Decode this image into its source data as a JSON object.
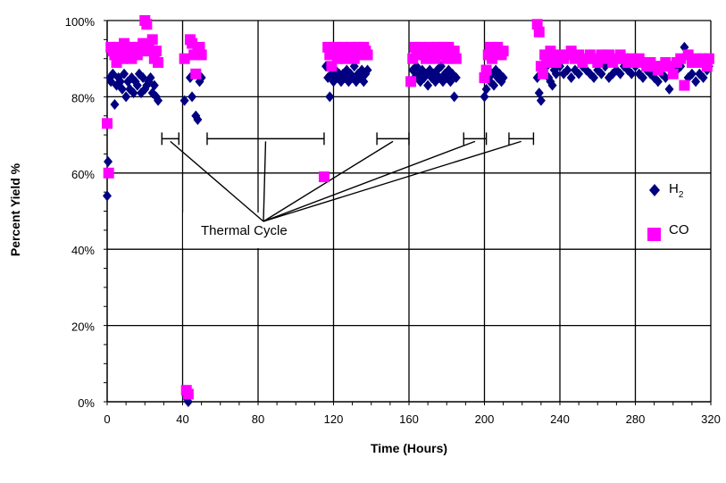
{
  "chart_data": {
    "type": "scatter",
    "xlabel": "Time (Hours)",
    "ylabel": "Percent Yield %",
    "xlim": [
      0,
      320
    ],
    "ylim": [
      0,
      100
    ],
    "x_ticks": [
      "0",
      "40",
      "80",
      "120",
      "160",
      "200",
      "240",
      "280",
      "320"
    ],
    "y_ticks": [
      "0%",
      "20%",
      "40%",
      "60%",
      "80%",
      "100%"
    ],
    "grid": true,
    "legend": {
      "placement": "right",
      "h2": {
        "base": "H",
        "sub": "2"
      },
      "co": "CO"
    },
    "annotation": {
      "text": "Thermal Cycle",
      "intervals": [
        [
          29,
          38
        ],
        [
          53,
          115
        ],
        [
          143,
          160
        ],
        [
          189,
          201
        ],
        [
          213,
          226
        ]
      ]
    },
    "series": [
      {
        "name": "H2",
        "color": "#000080",
        "marker": "diamond",
        "points": [
          [
            0,
            54
          ],
          [
            0.5,
            63
          ],
          [
            1,
            60
          ],
          [
            1.5,
            85
          ],
          [
            2,
            84
          ],
          [
            3,
            86
          ],
          [
            4,
            78
          ],
          [
            5,
            83
          ],
          [
            6,
            85
          ],
          [
            7,
            84
          ],
          [
            8,
            82
          ],
          [
            9,
            86
          ],
          [
            10,
            80
          ],
          [
            11,
            84
          ],
          [
            12,
            82
          ],
          [
            13,
            85
          ],
          [
            14,
            81
          ],
          [
            15,
            84
          ],
          [
            16,
            83
          ],
          [
            17,
            86
          ],
          [
            18,
            81
          ],
          [
            19,
            85
          ],
          [
            20,
            82
          ],
          [
            21,
            83
          ],
          [
            22,
            84
          ],
          [
            23,
            85
          ],
          [
            24,
            81
          ],
          [
            25,
            83
          ],
          [
            26,
            80
          ],
          [
            27,
            79
          ],
          [
            41,
            79
          ],
          [
            42,
            1
          ],
          [
            43,
            0
          ],
          [
            44,
            85
          ],
          [
            45,
            80
          ],
          [
            46,
            86
          ],
          [
            47,
            75
          ],
          [
            48,
            74
          ],
          [
            49,
            84
          ],
          [
            50,
            85
          ],
          [
            116,
            88
          ],
          [
            117,
            85
          ],
          [
            118,
            80
          ],
          [
            119,
            86
          ],
          [
            120,
            84
          ],
          [
            121,
            87
          ],
          [
            122,
            85
          ],
          [
            123,
            86
          ],
          [
            124,
            84
          ],
          [
            125,
            86
          ],
          [
            126,
            85
          ],
          [
            127,
            87
          ],
          [
            128,
            84
          ],
          [
            129,
            86
          ],
          [
            130,
            85
          ],
          [
            131,
            88
          ],
          [
            132,
            84
          ],
          [
            133,
            86
          ],
          [
            134,
            85
          ],
          [
            135,
            87
          ],
          [
            136,
            84
          ],
          [
            137,
            86
          ],
          [
            138,
            87
          ],
          [
            162,
            87
          ],
          [
            163,
            85
          ],
          [
            164,
            88
          ],
          [
            165,
            86
          ],
          [
            166,
            84
          ],
          [
            167,
            87
          ],
          [
            168,
            85
          ],
          [
            169,
            86
          ],
          [
            170,
            83
          ],
          [
            171,
            87
          ],
          [
            172,
            85
          ],
          [
            173,
            86
          ],
          [
            174,
            84
          ],
          [
            175,
            87
          ],
          [
            176,
            85
          ],
          [
            177,
            88
          ],
          [
            178,
            84
          ],
          [
            179,
            86
          ],
          [
            180,
            85
          ],
          [
            181,
            87
          ],
          [
            182,
            84
          ],
          [
            183,
            86
          ],
          [
            184,
            80
          ],
          [
            185,
            85
          ],
          [
            200,
            80
          ],
          [
            201,
            82
          ],
          [
            202,
            85
          ],
          [
            203,
            84
          ],
          [
            204,
            86
          ],
          [
            205,
            83
          ],
          [
            206,
            87
          ],
          [
            207,
            85
          ],
          [
            208,
            86
          ],
          [
            209,
            84
          ],
          [
            210,
            85
          ],
          [
            228,
            85
          ],
          [
            229,
            81
          ],
          [
            230,
            79
          ],
          [
            231,
            87
          ],
          [
            232,
            86
          ],
          [
            233,
            88
          ],
          [
            234,
            85
          ],
          [
            235,
            84
          ],
          [
            236,
            83
          ],
          [
            237,
            87
          ],
          [
            238,
            86
          ],
          [
            240,
            88
          ],
          [
            242,
            86
          ],
          [
            244,
            87
          ],
          [
            246,
            85
          ],
          [
            248,
            87
          ],
          [
            250,
            86
          ],
          [
            252,
            88
          ],
          [
            254,
            87
          ],
          [
            256,
            86
          ],
          [
            258,
            85
          ],
          [
            260,
            87
          ],
          [
            262,
            86
          ],
          [
            264,
            88
          ],
          [
            266,
            85
          ],
          [
            268,
            86
          ],
          [
            270,
            87
          ],
          [
            272,
            86
          ],
          [
            274,
            88
          ],
          [
            276,
            87
          ],
          [
            278,
            86
          ],
          [
            280,
            88
          ],
          [
            282,
            86
          ],
          [
            284,
            85
          ],
          [
            286,
            87
          ],
          [
            288,
            86
          ],
          [
            290,
            85
          ],
          [
            292,
            84
          ],
          [
            294,
            86
          ],
          [
            296,
            85
          ],
          [
            298,
            82
          ],
          [
            300,
            86
          ],
          [
            302,
            87
          ],
          [
            304,
            88
          ],
          [
            306,
            93
          ],
          [
            308,
            85
          ],
          [
            310,
            86
          ],
          [
            312,
            84
          ],
          [
            314,
            86
          ],
          [
            316,
            85
          ],
          [
            318,
            87
          ],
          [
            319,
            88
          ]
        ]
      },
      {
        "name": "CO",
        "color": "#FF00FF",
        "marker": "square",
        "points": [
          [
            0,
            73
          ],
          [
            0.8,
            60
          ],
          [
            2,
            93
          ],
          [
            3,
            92
          ],
          [
            4,
            91
          ],
          [
            5,
            89
          ],
          [
            6,
            93
          ],
          [
            7,
            92
          ],
          [
            8,
            90
          ],
          [
            9,
            94
          ],
          [
            10,
            93
          ],
          [
            11,
            91
          ],
          [
            12,
            92
          ],
          [
            13,
            90
          ],
          [
            14,
            93
          ],
          [
            15,
            92
          ],
          [
            16,
            91
          ],
          [
            17,
            93
          ],
          [
            18,
            92
          ],
          [
            19,
            94
          ],
          [
            20,
            100
          ],
          [
            21,
            99
          ],
          [
            22,
            93
          ],
          [
            23,
            92
          ],
          [
            24,
            95
          ],
          [
            25,
            90
          ],
          [
            26,
            92
          ],
          [
            27,
            89
          ],
          [
            41,
            90
          ],
          [
            42,
            3
          ],
          [
            43,
            2
          ],
          [
            44,
            95
          ],
          [
            45,
            94
          ],
          [
            46,
            91
          ],
          [
            47,
            86
          ],
          [
            48,
            92
          ],
          [
            49,
            93
          ],
          [
            50,
            91
          ],
          [
            115,
            59
          ],
          [
            117,
            93
          ],
          [
            118,
            91
          ],
          [
            119,
            88
          ],
          [
            120,
            92
          ],
          [
            121,
            93
          ],
          [
            122,
            90
          ],
          [
            123,
            92
          ],
          [
            124,
            91
          ],
          [
            125,
            93
          ],
          [
            126,
            90
          ],
          [
            127,
            92
          ],
          [
            128,
            91
          ],
          [
            129,
            93
          ],
          [
            130,
            92
          ],
          [
            131,
            90
          ],
          [
            132,
            91
          ],
          [
            133,
            93
          ],
          [
            134,
            92
          ],
          [
            135,
            91
          ],
          [
            136,
            93
          ],
          [
            137,
            92
          ],
          [
            138,
            91
          ],
          [
            161,
            84
          ],
          [
            162,
            90
          ],
          [
            163,
            93
          ],
          [
            164,
            92
          ],
          [
            165,
            91
          ],
          [
            166,
            93
          ],
          [
            167,
            92
          ],
          [
            168,
            91
          ],
          [
            169,
            90
          ],
          [
            170,
            92
          ],
          [
            171,
            93
          ],
          [
            172,
            91
          ],
          [
            173,
            92
          ],
          [
            174,
            90
          ],
          [
            175,
            93
          ],
          [
            176,
            92
          ],
          [
            177,
            91
          ],
          [
            178,
            93
          ],
          [
            179,
            92
          ],
          [
            180,
            90
          ],
          [
            181,
            93
          ],
          [
            182,
            92
          ],
          [
            183,
            91
          ],
          [
            184,
            92
          ],
          [
            185,
            90
          ],
          [
            200,
            85
          ],
          [
            201,
            87
          ],
          [
            202,
            91
          ],
          [
            203,
            93
          ],
          [
            204,
            90
          ],
          [
            205,
            92
          ],
          [
            206,
            91
          ],
          [
            207,
            93
          ],
          [
            208,
            92
          ],
          [
            209,
            91
          ],
          [
            210,
            92
          ],
          [
            228,
            99
          ],
          [
            229,
            97
          ],
          [
            230,
            88
          ],
          [
            231,
            86
          ],
          [
            232,
            91
          ],
          [
            233,
            90
          ],
          [
            234,
            89
          ],
          [
            235,
            92
          ],
          [
            236,
            91
          ],
          [
            237,
            90
          ],
          [
            238,
            89
          ],
          [
            240,
            91
          ],
          [
            242,
            90
          ],
          [
            244,
            91
          ],
          [
            246,
            92
          ],
          [
            248,
            90
          ],
          [
            250,
            91
          ],
          [
            252,
            89
          ],
          [
            254,
            90
          ],
          [
            256,
            91
          ],
          [
            258,
            90
          ],
          [
            260,
            89
          ],
          [
            262,
            91
          ],
          [
            264,
            90
          ],
          [
            266,
            91
          ],
          [
            268,
            89
          ],
          [
            270,
            90
          ],
          [
            272,
            91
          ],
          [
            274,
            90
          ],
          [
            276,
            89
          ],
          [
            278,
            90
          ],
          [
            280,
            89
          ],
          [
            282,
            90
          ],
          [
            284,
            89
          ],
          [
            286,
            88
          ],
          [
            288,
            89
          ],
          [
            290,
            88
          ],
          [
            292,
            87
          ],
          [
            294,
            88
          ],
          [
            296,
            89
          ],
          [
            298,
            88
          ],
          [
            300,
            86
          ],
          [
            302,
            89
          ],
          [
            304,
            90
          ],
          [
            306,
            83
          ],
          [
            308,
            91
          ],
          [
            310,
            89
          ],
          [
            312,
            90
          ],
          [
            314,
            89
          ],
          [
            316,
            90
          ],
          [
            318,
            88
          ],
          [
            319,
            90
          ]
        ]
      }
    ]
  }
}
